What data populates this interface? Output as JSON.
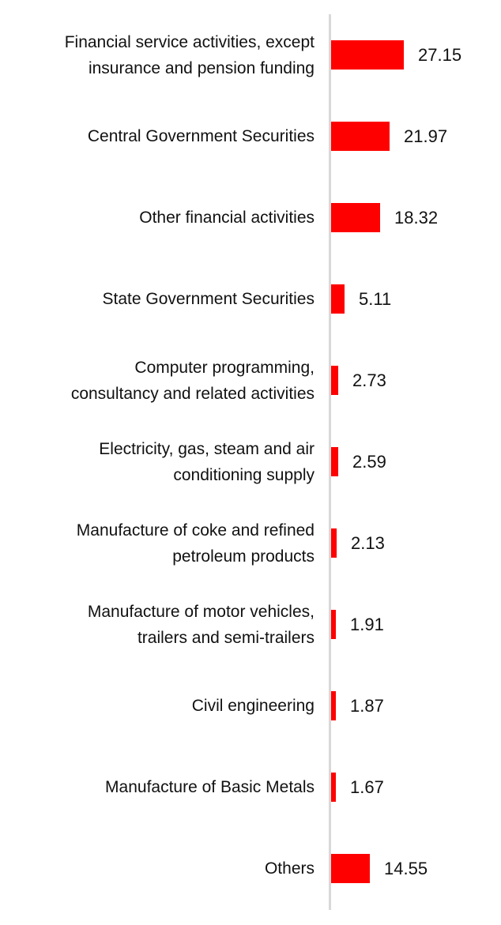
{
  "chart_data": {
    "type": "bar",
    "orientation": "horizontal",
    "title": "",
    "xlabel": "",
    "ylabel": "",
    "xlim": [
      0,
      30
    ],
    "grid": false,
    "legend": false,
    "bar_color": "#ff0000",
    "axis_line_color": "#d9d9d9",
    "text_color": "#111111",
    "categories": [
      "Financial service activities, except insurance and pension funding",
      "Central Government Securities",
      "Other financial activities",
      "State Government Securities",
      "Computer programming, consultancy and related activities",
      "Electricity, gas, steam and air conditioning supply",
      "Manufacture of coke and refined petroleum products",
      "Manufacture of motor vehicles, trailers and semi-trailers",
      "Civil engineering",
      "Manufacture of Basic Metals",
      "Others"
    ],
    "category_display_lines": [
      [
        "Financial service activities, except",
        "insurance and pension funding"
      ],
      [
        "Central Government Securities"
      ],
      [
        "Other financial activities"
      ],
      [
        "State Government Securities"
      ],
      [
        "Computer programming,",
        "consultancy and related activities"
      ],
      [
        "Electricity, gas, steam and air",
        "conditioning supply"
      ],
      [
        "Manufacture of coke and refined",
        "petroleum products"
      ],
      [
        "Manufacture of motor vehicles,",
        "trailers and semi-trailers"
      ],
      [
        "Civil engineering"
      ],
      [
        "Manufacture of Basic Metals"
      ],
      [
        "Others"
      ]
    ],
    "values": [
      27.15,
      21.97,
      18.32,
      5.11,
      2.73,
      2.59,
      2.13,
      1.91,
      1.87,
      1.67,
      14.55
    ],
    "value_labels": [
      "27.15",
      "21.97",
      "18.32",
      "5.11",
      "2.73",
      "2.59",
      "2.13",
      "1.91",
      "1.87",
      "1.67",
      "14.55"
    ]
  }
}
